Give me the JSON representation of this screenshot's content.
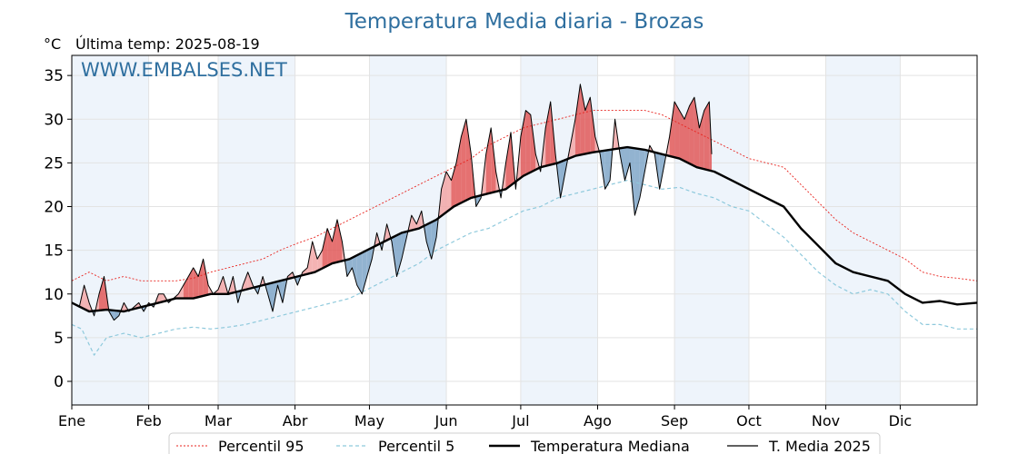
{
  "chart_data": {
    "type": "line",
    "title": "Temperatura Media diaria - Brozas",
    "unit_label": "°C",
    "subtitle": "Última temp: 2025-08-19",
    "watermark": "WWW.EMBALSES.NET",
    "xlabel": "",
    "ylabel": "",
    "ylim": [
      -2.7,
      37.3
    ],
    "y_ticks": [
      0,
      5,
      10,
      15,
      20,
      25,
      30,
      35
    ],
    "x_domain": [
      1,
      366
    ],
    "month_ticks": [
      {
        "label": "Ene",
        "day": 1
      },
      {
        "label": "Feb",
        "day": 32
      },
      {
        "label": "Mar",
        "day": 60
      },
      {
        "label": "Abr",
        "day": 91
      },
      {
        "label": "May",
        "day": 121
      },
      {
        "label": "Jun",
        "day": 152
      },
      {
        "label": "Jul",
        "day": 182
      },
      {
        "label": "Ago",
        "day": 213
      },
      {
        "label": "Sep",
        "day": 244
      },
      {
        "label": "Oct",
        "day": 274
      },
      {
        "label": "Nov",
        "day": 305
      },
      {
        "label": "Dic",
        "day": 335
      }
    ],
    "shaded_months": [
      "Ene",
      "Mar",
      "May",
      "Jul",
      "Sep",
      "Nov"
    ],
    "grid": true,
    "legend_position": "bottom",
    "colors": {
      "p95": "#e8231e",
      "p5": "#8ec9dc",
      "median": "#000000",
      "year": "#000000",
      "above": "#f2a6a6",
      "above_strong": "#e05858",
      "below": "#7fa6c8",
      "month_band": "#eef4fb"
    },
    "series": [
      {
        "name": "Percentil 95",
        "key": "p95",
        "points": [
          [
            1,
            11.5
          ],
          [
            8,
            12.5
          ],
          [
            15,
            11.5
          ],
          [
            22,
            12
          ],
          [
            29,
            11.5
          ],
          [
            36,
            11.5
          ],
          [
            43,
            11.5
          ],
          [
            50,
            11.8
          ],
          [
            57,
            12.5
          ],
          [
            64,
            13
          ],
          [
            71,
            13.5
          ],
          [
            78,
            14
          ],
          [
            85,
            15
          ],
          [
            92,
            15.8
          ],
          [
            99,
            16.5
          ],
          [
            106,
            17.5
          ],
          [
            113,
            18.5
          ],
          [
            120,
            19.5
          ],
          [
            127,
            20.5
          ],
          [
            134,
            21.5
          ],
          [
            141,
            22.5
          ],
          [
            148,
            23.5
          ],
          [
            155,
            24.5
          ],
          [
            162,
            25.5
          ],
          [
            169,
            27
          ],
          [
            176,
            28
          ],
          [
            183,
            29
          ],
          [
            190,
            29.5
          ],
          [
            197,
            30
          ],
          [
            204,
            30.5
          ],
          [
            211,
            31
          ],
          [
            218,
            31
          ],
          [
            225,
            31
          ],
          [
            232,
            31
          ],
          [
            239,
            30.5
          ],
          [
            246,
            29.5
          ],
          [
            253,
            28.5
          ],
          [
            260,
            27.5
          ],
          [
            267,
            26.5
          ],
          [
            274,
            25.5
          ],
          [
            281,
            25
          ],
          [
            288,
            24.5
          ],
          [
            295,
            22.5
          ],
          [
            302,
            20.5
          ],
          [
            309,
            18.5
          ],
          [
            316,
            17
          ],
          [
            323,
            16
          ],
          [
            330,
            15
          ],
          [
            337,
            14
          ],
          [
            344,
            12.5
          ],
          [
            351,
            12
          ],
          [
            358,
            11.8
          ],
          [
            366,
            11.5
          ]
        ]
      },
      {
        "name": "Percentil 5",
        "key": "p5",
        "points": [
          [
            1,
            6.5
          ],
          [
            5,
            6
          ],
          [
            10,
            3
          ],
          [
            15,
            5
          ],
          [
            22,
            5.5
          ],
          [
            29,
            5
          ],
          [
            36,
            5.5
          ],
          [
            43,
            6
          ],
          [
            50,
            6.2
          ],
          [
            57,
            6
          ],
          [
            64,
            6.2
          ],
          [
            71,
            6.5
          ],
          [
            78,
            7
          ],
          [
            85,
            7.5
          ],
          [
            92,
            8
          ],
          [
            99,
            8.5
          ],
          [
            106,
            9
          ],
          [
            113,
            9.5
          ],
          [
            120,
            10.5
          ],
          [
            127,
            11.5
          ],
          [
            134,
            12.5
          ],
          [
            141,
            13.5
          ],
          [
            148,
            15
          ],
          [
            155,
            16
          ],
          [
            162,
            17
          ],
          [
            169,
            17.5
          ],
          [
            176,
            18.5
          ],
          [
            183,
            19.5
          ],
          [
            190,
            20
          ],
          [
            197,
            21
          ],
          [
            204,
            21.5
          ],
          [
            211,
            22
          ],
          [
            218,
            22.5
          ],
          [
            225,
            23
          ],
          [
            232,
            22.5
          ],
          [
            239,
            22
          ],
          [
            246,
            22.2
          ],
          [
            253,
            21.5
          ],
          [
            260,
            21
          ],
          [
            267,
            20
          ],
          [
            274,
            19.5
          ],
          [
            281,
            18
          ],
          [
            288,
            16.5
          ],
          [
            295,
            14.5
          ],
          [
            302,
            12.5
          ],
          [
            309,
            11
          ],
          [
            316,
            10
          ],
          [
            323,
            10.5
          ],
          [
            330,
            10
          ],
          [
            337,
            8
          ],
          [
            344,
            6.5
          ],
          [
            351,
            6.5
          ],
          [
            358,
            6
          ],
          [
            366,
            6
          ]
        ]
      },
      {
        "name": "Temperatura Mediana",
        "key": "median",
        "points": [
          [
            1,
            9
          ],
          [
            8,
            8
          ],
          [
            15,
            8.2
          ],
          [
            22,
            8
          ],
          [
            29,
            8.5
          ],
          [
            36,
            9
          ],
          [
            43,
            9.5
          ],
          [
            50,
            9.5
          ],
          [
            57,
            10
          ],
          [
            64,
            10
          ],
          [
            71,
            10.5
          ],
          [
            78,
            11
          ],
          [
            85,
            11.5
          ],
          [
            92,
            12
          ],
          [
            99,
            12.5
          ],
          [
            106,
            13.5
          ],
          [
            113,
            14
          ],
          [
            120,
            15
          ],
          [
            127,
            16
          ],
          [
            134,
            17
          ],
          [
            141,
            17.5
          ],
          [
            148,
            18.5
          ],
          [
            155,
            20
          ],
          [
            162,
            21
          ],
          [
            169,
            21.5
          ],
          [
            176,
            22
          ],
          [
            183,
            23.5
          ],
          [
            190,
            24.5
          ],
          [
            197,
            25
          ],
          [
            204,
            25.8
          ],
          [
            211,
            26.2
          ],
          [
            218,
            26.5
          ],
          [
            225,
            26.8
          ],
          [
            232,
            26.5
          ],
          [
            239,
            26
          ],
          [
            246,
            25.5
          ],
          [
            253,
            24.5
          ],
          [
            260,
            24
          ],
          [
            267,
            23
          ],
          [
            274,
            22
          ],
          [
            281,
            21
          ],
          [
            288,
            20
          ],
          [
            295,
            17.5
          ],
          [
            302,
            15.5
          ],
          [
            309,
            13.5
          ],
          [
            316,
            12.5
          ],
          [
            323,
            12
          ],
          [
            330,
            11.5
          ],
          [
            337,
            10
          ],
          [
            344,
            9
          ],
          [
            351,
            9.2
          ],
          [
            358,
            8.8
          ],
          [
            366,
            9
          ]
        ]
      },
      {
        "name": "T. Media 2025",
        "key": "year",
        "points": [
          [
            1,
            9
          ],
          [
            4,
            8.5
          ],
          [
            6,
            11
          ],
          [
            8,
            9
          ],
          [
            10,
            7.5
          ],
          [
            12,
            10
          ],
          [
            14,
            12
          ],
          [
            16,
            8
          ],
          [
            18,
            7
          ],
          [
            20,
            7.5
          ],
          [
            22,
            9
          ],
          [
            24,
            8
          ],
          [
            26,
            8.5
          ],
          [
            28,
            9
          ],
          [
            30,
            8
          ],
          [
            32,
            9
          ],
          [
            34,
            8.5
          ],
          [
            36,
            10
          ],
          [
            38,
            10
          ],
          [
            40,
            9
          ],
          [
            42,
            9.5
          ],
          [
            44,
            10
          ],
          [
            46,
            11
          ],
          [
            48,
            12
          ],
          [
            50,
            13
          ],
          [
            52,
            12
          ],
          [
            54,
            14
          ],
          [
            56,
            11
          ],
          [
            58,
            10
          ],
          [
            60,
            10.5
          ],
          [
            62,
            12
          ],
          [
            64,
            10
          ],
          [
            66,
            12
          ],
          [
            68,
            9
          ],
          [
            70,
            11
          ],
          [
            72,
            12.5
          ],
          [
            74,
            11
          ],
          [
            76,
            10
          ],
          [
            78,
            12
          ],
          [
            80,
            10
          ],
          [
            82,
            8
          ],
          [
            84,
            11
          ],
          [
            86,
            9
          ],
          [
            88,
            12
          ],
          [
            90,
            12.5
          ],
          [
            92,
            11
          ],
          [
            94,
            12.5
          ],
          [
            96,
            13
          ],
          [
            98,
            16
          ],
          [
            100,
            14
          ],
          [
            102,
            15
          ],
          [
            104,
            17.5
          ],
          [
            106,
            16
          ],
          [
            108,
            18.5
          ],
          [
            110,
            16
          ],
          [
            112,
            12
          ],
          [
            114,
            13
          ],
          [
            116,
            11
          ],
          [
            118,
            10
          ],
          [
            120,
            12
          ],
          [
            122,
            14
          ],
          [
            124,
            17
          ],
          [
            126,
            15
          ],
          [
            128,
            18
          ],
          [
            130,
            16
          ],
          [
            132,
            12
          ],
          [
            134,
            14
          ],
          [
            136,
            16.5
          ],
          [
            138,
            19
          ],
          [
            140,
            18
          ],
          [
            142,
            19.5
          ],
          [
            144,
            16
          ],
          [
            146,
            14
          ],
          [
            148,
            16.5
          ],
          [
            150,
            22
          ],
          [
            152,
            24
          ],
          [
            154,
            23
          ],
          [
            156,
            25
          ],
          [
            158,
            28
          ],
          [
            160,
            30
          ],
          [
            162,
            26
          ],
          [
            164,
            20
          ],
          [
            166,
            21
          ],
          [
            168,
            26
          ],
          [
            170,
            29
          ],
          [
            172,
            24
          ],
          [
            174,
            21
          ],
          [
            176,
            25
          ],
          [
            178,
            28.5
          ],
          [
            180,
            22
          ],
          [
            182,
            28
          ],
          [
            184,
            31
          ],
          [
            186,
            30.5
          ],
          [
            188,
            26
          ],
          [
            190,
            24
          ],
          [
            192,
            29
          ],
          [
            194,
            32
          ],
          [
            196,
            26
          ],
          [
            198,
            21
          ],
          [
            200,
            24
          ],
          [
            202,
            27
          ],
          [
            204,
            30
          ],
          [
            206,
            34
          ],
          [
            208,
            31
          ],
          [
            210,
            32.5
          ],
          [
            212,
            28
          ],
          [
            214,
            26
          ],
          [
            216,
            22
          ],
          [
            218,
            23
          ],
          [
            220,
            30
          ],
          [
            222,
            26
          ],
          [
            224,
            23
          ],
          [
            226,
            25
          ],
          [
            228,
            19
          ],
          [
            230,
            21
          ],
          [
            232,
            24
          ],
          [
            234,
            27
          ],
          [
            236,
            26
          ],
          [
            238,
            22
          ],
          [
            240,
            25
          ],
          [
            242,
            28
          ],
          [
            244,
            32
          ],
          [
            246,
            31
          ],
          [
            248,
            30
          ],
          [
            250,
            31.5
          ],
          [
            252,
            32.5
          ],
          [
            254,
            29
          ],
          [
            256,
            31
          ],
          [
            258,
            32
          ],
          [
            259,
            26
          ]
        ]
      }
    ],
    "legend": [
      {
        "label": "Percentil 95",
        "key": "p95"
      },
      {
        "label": "Percentil 5",
        "key": "p5"
      },
      {
        "label": "Temperatura Mediana",
        "key": "median"
      },
      {
        "label": "T. Media 2025",
        "key": "year"
      }
    ]
  }
}
